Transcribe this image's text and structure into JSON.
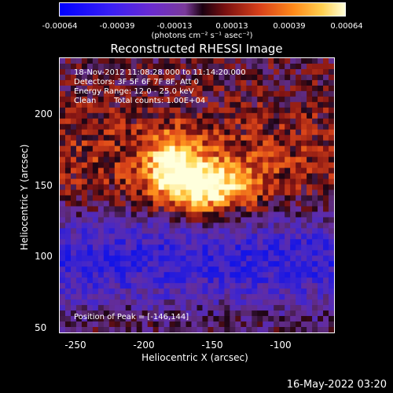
{
  "colorbar": {
    "tick_labels": [
      "-0.00064",
      "-0.00039",
      "-0.00013",
      "0.00013",
      "0.00039",
      "0.00064"
    ],
    "units": "(photons cm⁻² s⁻¹ asec⁻²)"
  },
  "image": {
    "title": "Reconstructed RHESSI Image",
    "time_range": "18-Nov-2012 11:08:28.000 to 11:14:20.000",
    "detectors": "Detectors: 3F 5F 6F 7F 8F, Att 0",
    "energy_range": "Energy Range: 12.0 - 25.0 keV",
    "clean_label": "Clean",
    "total_counts": "Total counts: 1.00E+04",
    "peak_label": "Position of Peak = [-146,144]"
  },
  "axes": {
    "x_label": "Heliocentric X (arcsec)",
    "y_label": "Heliocentric Y (arcsec)",
    "x_ticks": [
      "-250",
      "-200",
      "-150",
      "-100"
    ],
    "y_ticks": [
      "200",
      "150",
      "100",
      "50"
    ]
  },
  "timestamp": "16-May-2022 03:20"
}
